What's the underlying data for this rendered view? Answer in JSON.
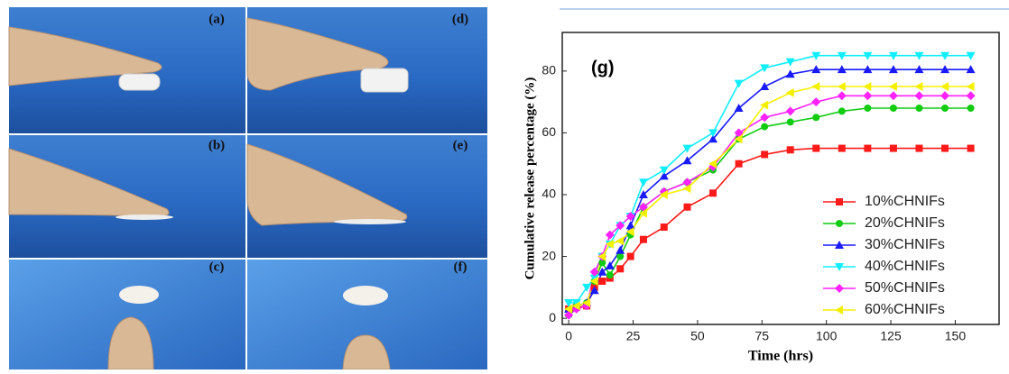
{
  "photo_labels": [
    "(a)",
    "(d)",
    "(b)",
    "(e)",
    "(c)",
    "(f)"
  ],
  "chart_data": {
    "type": "line",
    "annotation": "(g)",
    "x_label": "Time (hrs)",
    "y_label": "Cumulative release percentage (%)",
    "x": [
      0,
      3,
      7,
      10,
      13,
      16,
      20,
      24,
      29,
      37,
      46,
      56,
      66,
      76,
      86,
      96,
      106,
      116,
      126,
      136,
      146,
      156
    ],
    "series": [
      {
        "name": "10%CHNIFs",
        "color": "#ff1a1a",
        "marker": "square",
        "values": [
          3,
          3.5,
          4,
          10,
          12,
          13,
          16,
          20,
          25.5,
          29.5,
          36,
          40.5,
          50,
          53,
          54.5,
          55,
          55,
          55,
          55,
          55,
          55,
          55
        ]
      },
      {
        "name": "20%CHNIFs",
        "color": "#11cc11",
        "marker": "circle",
        "values": [
          1,
          4,
          5,
          12,
          18,
          14,
          20,
          27,
          36,
          41,
          44,
          48,
          58,
          62,
          63.5,
          65,
          67,
          68,
          68,
          68,
          68,
          68
        ]
      },
      {
        "name": "30%CHNIFs",
        "color": "#1a1aff",
        "marker": "triangle",
        "values": [
          3,
          4,
          5,
          9,
          15,
          17,
          22,
          30,
          40,
          46,
          51,
          58,
          68,
          75,
          79,
          80.5,
          80.5,
          80.5,
          80.5,
          80.5,
          80.5,
          80.5
        ]
      },
      {
        "name": "40%CHNIFs",
        "color": "#11eeff",
        "marker": "triangle-down",
        "values": [
          5,
          5,
          10,
          13,
          20,
          24,
          30,
          33,
          44,
          48,
          55,
          60,
          76,
          81,
          83,
          85,
          85,
          85,
          85,
          85,
          85,
          85
        ]
      },
      {
        "name": "50%CHNIFs",
        "color": "#ff22ff",
        "marker": "diamond",
        "values": [
          1,
          3,
          4,
          15,
          20,
          27,
          30,
          33,
          36,
          41,
          44,
          49,
          60,
          65,
          67,
          70,
          72,
          72,
          72,
          72,
          72,
          72
        ]
      },
      {
        "name": "60%CHNIFs",
        "color": "#f5f000",
        "marker": "triangle-left",
        "values": [
          3,
          4,
          5,
          12,
          20,
          24,
          25,
          28,
          34,
          40,
          42,
          50,
          58,
          69,
          73,
          75,
          75,
          75,
          75,
          75,
          75,
          75
        ]
      }
    ],
    "xlim": [
      -2.5,
      167
    ],
    "ylim": [
      -2,
      92.5
    ],
    "xticks": [
      0,
      25,
      50,
      75,
      100,
      125,
      150
    ],
    "yticks": [
      0,
      20,
      40,
      60,
      80
    ],
    "legend": "lower right"
  }
}
